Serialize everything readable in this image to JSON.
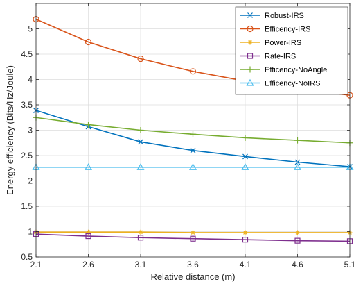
{
  "chart_data": {
    "type": "line",
    "title": "",
    "xlabel": "Relative distance (m)",
    "ylabel": "Energy efficiency (Bits/Hz/Joule)",
    "xlim": [
      2.1,
      5.1
    ],
    "ylim": [
      0.5,
      5.5
    ],
    "x_ticks": [
      "2.1",
      "2.6",
      "3.1",
      "3.6",
      "4.1",
      "4.6",
      "5.1"
    ],
    "y_ticks": [
      "0.5",
      "1",
      "1.5",
      "2",
      "2.5",
      "3",
      "3.5",
      "4",
      "4.5",
      "5"
    ],
    "grid": true,
    "legend_position": "top-right",
    "x": [
      2.1,
      2.6,
      3.1,
      3.6,
      4.1,
      4.6,
      5.1
    ],
    "series": [
      {
        "name": "Robust-IRS",
        "color": "#0072BD",
        "marker": "x",
        "values": [
          3.39,
          3.07,
          2.77,
          2.6,
          2.48,
          2.37,
          2.28
        ]
      },
      {
        "name": "Efficency-IRS",
        "color": "#D95319",
        "marker": "circle",
        "values": [
          5.19,
          4.74,
          4.41,
          4.16,
          3.97,
          3.81,
          3.69
        ]
      },
      {
        "name": "Power-IRS",
        "color": "#EDB120",
        "marker": "star",
        "values": [
          0.99,
          0.99,
          0.99,
          0.98,
          0.98,
          0.98,
          0.98
        ]
      },
      {
        "name": "Rate-IRS",
        "color": "#7E2F8E",
        "marker": "square",
        "values": [
          0.95,
          0.91,
          0.88,
          0.86,
          0.84,
          0.82,
          0.81
        ]
      },
      {
        "name": "Efficency-NoAngle",
        "color": "#77AC30",
        "marker": "plus",
        "values": [
          3.25,
          3.11,
          3.0,
          2.92,
          2.85,
          2.8,
          2.75
        ]
      },
      {
        "name": "Efficency-NoIRS",
        "color": "#4DBEEE",
        "marker": "triangle",
        "values": [
          2.27,
          2.27,
          2.27,
          2.27,
          2.27,
          2.27,
          2.27
        ]
      }
    ]
  }
}
